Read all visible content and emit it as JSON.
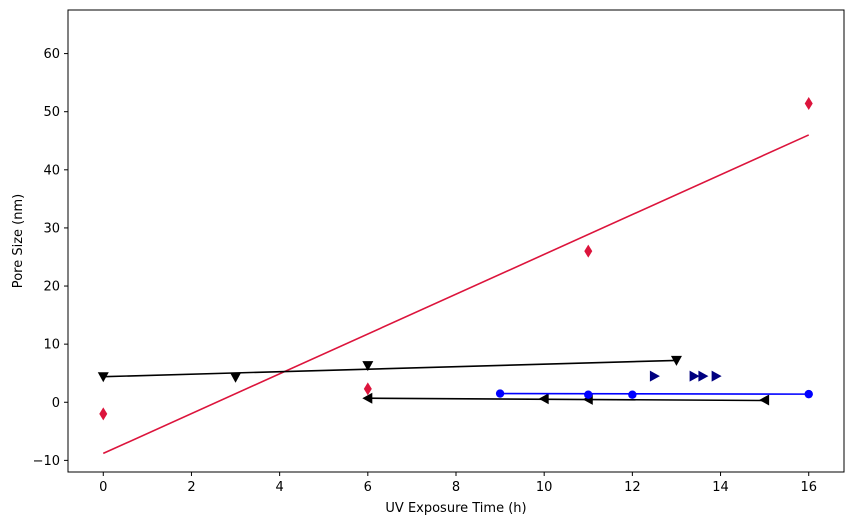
{
  "chart_data": {
    "type": "scatter",
    "title": "",
    "xlabel": "UV Exposure Time (h)",
    "ylabel": "Pore Size (nm)",
    "xlim": [
      -0.8,
      16.8
    ],
    "ylim": [
      -12,
      67.5
    ],
    "xticks": [
      "0",
      "2",
      "4",
      "6",
      "8",
      "10",
      "12",
      "14",
      "16"
    ],
    "yticks": [
      "−10",
      "0",
      "10",
      "20",
      "30",
      "40",
      "50",
      "60"
    ],
    "grid": false,
    "legend": "none",
    "series": [
      {
        "marker": "thin_diamond",
        "color": "#dc143c",
        "style": "markers",
        "x": [
          0,
          6,
          11,
          16
        ],
        "y": [
          -2.0,
          2.3,
          26.0,
          51.4
        ]
      },
      {
        "marker": "none",
        "color": "#dc143c",
        "style": "line",
        "x": [
          0,
          16
        ],
        "y": [
          -8.8,
          46.0
        ]
      },
      {
        "marker": "triangle_down",
        "color": "#000000",
        "style": "markers",
        "x": [
          0,
          3,
          6,
          13
        ],
        "y": [
          4.4,
          4.3,
          6.3,
          7.2
        ]
      },
      {
        "marker": "none",
        "color": "#000000",
        "style": "line",
        "x": [
          0,
          13
        ],
        "y": [
          4.4,
          7.2
        ]
      },
      {
        "marker": "triangle_left",
        "color": "#000000",
        "style": "markers",
        "x": [
          6,
          10,
          11,
          15
        ],
        "y": [
          0.7,
          0.6,
          0.5,
          0.4
        ]
      },
      {
        "marker": "none",
        "color": "#000000",
        "style": "line",
        "x": [
          6,
          15
        ],
        "y": [
          0.7,
          0.3
        ]
      },
      {
        "marker": "circle",
        "color": "#0000ff",
        "style": "markers",
        "x": [
          9,
          11,
          12,
          16
        ],
        "y": [
          1.5,
          1.3,
          1.3,
          1.4
        ]
      },
      {
        "marker": "none",
        "color": "#0000ff",
        "style": "line",
        "x": [
          9,
          16
        ],
        "y": [
          1.5,
          1.4
        ]
      },
      {
        "marker": "triangle_right",
        "color": "#000080",
        "style": "markers",
        "x": [
          12.5,
          13.4,
          13.6,
          13.9
        ],
        "y": [
          4.5,
          4.5,
          4.5,
          4.5
        ]
      }
    ]
  }
}
